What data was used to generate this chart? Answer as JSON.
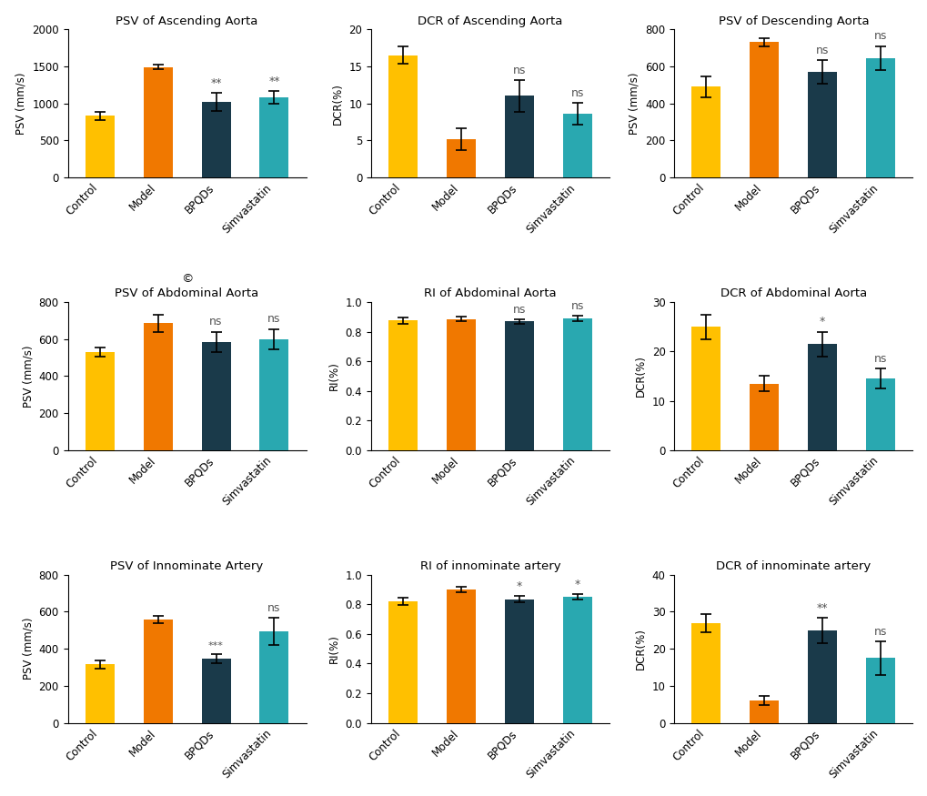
{
  "subplots": [
    {
      "title": "PSV of Ascending Aorta",
      "ylabel": "PSV (mm/s)",
      "ylim": [
        0,
        2000
      ],
      "yticks": [
        0,
        500,
        1000,
        1500,
        2000
      ],
      "values": [
        830,
        1490,
        1020,
        1080
      ],
      "errors": [
        60,
        30,
        120,
        90
      ],
      "sig": [
        "",
        "",
        "**",
        "**"
      ],
      "row": 0,
      "col": 0
    },
    {
      "title": "DCR of Ascending Aorta",
      "ylabel": "DCR(%)",
      "ylim": [
        0,
        20
      ],
      "yticks": [
        0,
        5,
        10,
        15,
        20
      ],
      "values": [
        16.5,
        5.2,
        11.0,
        8.6
      ],
      "errors": [
        1.2,
        1.5,
        2.2,
        1.5
      ],
      "sig": [
        "",
        "",
        "ns",
        "ns"
      ],
      "row": 0,
      "col": 1
    },
    {
      "title": "PSV of Descending Aorta",
      "ylabel": "PSV (mm/s)",
      "ylim": [
        0,
        800
      ],
      "yticks": [
        0,
        200,
        400,
        600,
        800
      ],
      "values": [
        490,
        730,
        570,
        645
      ],
      "errors": [
        55,
        20,
        65,
        65
      ],
      "sig": [
        "",
        "",
        "ns",
        "ns"
      ],
      "row": 0,
      "col": 2
    },
    {
      "title": "PSV of Abdominal Aorta",
      "ylabel": "PSV (mm/s)",
      "ylim": [
        0,
        800
      ],
      "yticks": [
        0,
        200,
        400,
        600,
        800
      ],
      "values": [
        530,
        685,
        585,
        600
      ],
      "errors": [
        25,
        45,
        55,
        55
      ],
      "sig": [
        "",
        "",
        "ns",
        "ns"
      ],
      "row": 1,
      "col": 0,
      "copyright": true
    },
    {
      "title": "RI of Abdominal Aorta",
      "ylabel": "RI(%)",
      "ylim": [
        0,
        1.0
      ],
      "yticks": [
        0.0,
        0.2,
        0.4,
        0.6,
        0.8,
        1.0
      ],
      "values": [
        0.875,
        0.885,
        0.87,
        0.89
      ],
      "errors": [
        0.02,
        0.015,
        0.015,
        0.018
      ],
      "sig": [
        "",
        "",
        "ns",
        "ns"
      ],
      "row": 1,
      "col": 1
    },
    {
      "title": "DCR of Abdominal Aorta",
      "ylabel": "DCR(%)",
      "ylim": [
        0,
        30
      ],
      "yticks": [
        0,
        10,
        20,
        30
      ],
      "values": [
        25.0,
        13.5,
        21.5,
        14.5
      ],
      "errors": [
        2.5,
        1.5,
        2.5,
        2.0
      ],
      "sig": [
        "",
        "",
        "*",
        "ns"
      ],
      "row": 1,
      "col": 2
    },
    {
      "title": "PSV of Innominate Artery",
      "ylabel": "PSV (mm/s)",
      "ylim": [
        0,
        800
      ],
      "yticks": [
        0,
        200,
        400,
        600,
        800
      ],
      "values": [
        315,
        560,
        345,
        495
      ],
      "errors": [
        20,
        20,
        25,
        75
      ],
      "sig": [
        "",
        "",
        "***",
        "ns"
      ],
      "row": 2,
      "col": 0
    },
    {
      "title": "RI of innominate artery",
      "ylabel": "RI(%)",
      "ylim": [
        0,
        1.0
      ],
      "yticks": [
        0.0,
        0.2,
        0.4,
        0.6,
        0.8,
        1.0
      ],
      "values": [
        0.82,
        0.9,
        0.835,
        0.85
      ],
      "errors": [
        0.025,
        0.018,
        0.022,
        0.02
      ],
      "sig": [
        "",
        "",
        "*",
        "*"
      ],
      "row": 2,
      "col": 1
    },
    {
      "title": "DCR of innominate artery",
      "ylabel": "DCR(%)",
      "ylim": [
        0,
        40
      ],
      "yticks": [
        0,
        10,
        20,
        30,
        40
      ],
      "values": [
        27.0,
        6.0,
        25.0,
        17.5
      ],
      "errors": [
        2.5,
        1.2,
        3.5,
        4.5
      ],
      "sig": [
        "",
        "",
        "**",
        "ns"
      ],
      "row": 2,
      "col": 2
    }
  ],
  "categories": [
    "Control",
    "Model",
    "BPQDs",
    "Simvastatin"
  ],
  "bar_colors": [
    "#FFC000",
    "#F07800",
    "#1A3A4A",
    "#29A8B0"
  ],
  "sig_color": "#555555",
  "background_color": "#FFFFFF"
}
